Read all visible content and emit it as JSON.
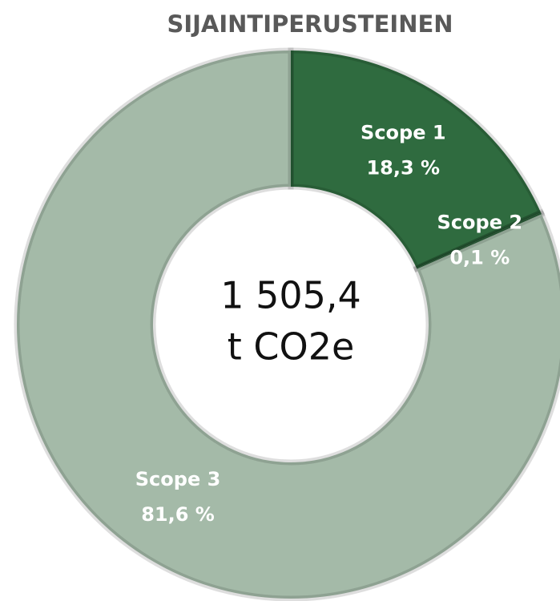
{
  "chart_data": {
    "type": "donut",
    "title": "SIJAINTIPERUSTEINEN",
    "categories": [
      "Scope 1",
      "Scope 2",
      "Scope 3"
    ],
    "values": [
      18.3,
      0.1,
      81.6
    ],
    "value_labels": [
      "18,3 %",
      "0,1 %",
      "81,6 %"
    ],
    "colors": [
      "#2f6b3f",
      "#2f6b3f",
      "#a4baa8"
    ],
    "center_text": [
      "1 505,4",
      "t CO2e"
    ]
  }
}
